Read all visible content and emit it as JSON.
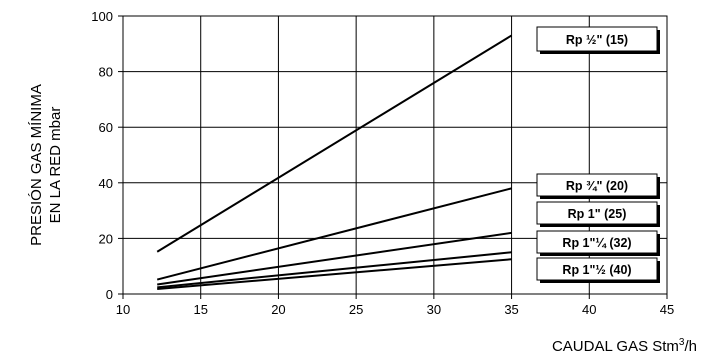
{
  "chart_data": {
    "type": "line",
    "title": "",
    "xlabel": "CAUDAL GAS Stm",
    "xlabel_sup": "3",
    "xlabel_suffix": "/h",
    "ylabel_lines": [
      "PRESIÓN GAS MÍNIMA",
      "EN LA RED mbar"
    ],
    "xlim": [
      10,
      45
    ],
    "ylim": [
      0,
      100
    ],
    "xticks": [
      10,
      15,
      20,
      25,
      30,
      35,
      40,
      45
    ],
    "yticks": [
      0,
      20,
      40,
      60,
      80,
      100
    ],
    "grid": true,
    "legend": "series labels in boxes at right end of lines",
    "series": [
      {
        "name": "Rp ½\" (15)",
        "x": [
          12.2,
          35
        ],
        "y": [
          15.2,
          93
        ]
      },
      {
        "name": "Rp ¾\" (20)",
        "x": [
          12.2,
          35
        ],
        "y": [
          5.2,
          38
        ]
      },
      {
        "name": "Rp 1\" (25)",
        "x": [
          12.2,
          35
        ],
        "y": [
          3.4,
          22
        ]
      },
      {
        "name": "Rp 1\"¼ (32)",
        "x": [
          12.2,
          35
        ],
        "y": [
          2.4,
          15
        ]
      },
      {
        "name": "Rp 1\"½ (40)",
        "x": [
          12.2,
          35
        ],
        "y": [
          1.8,
          12.5
        ]
      }
    ]
  }
}
